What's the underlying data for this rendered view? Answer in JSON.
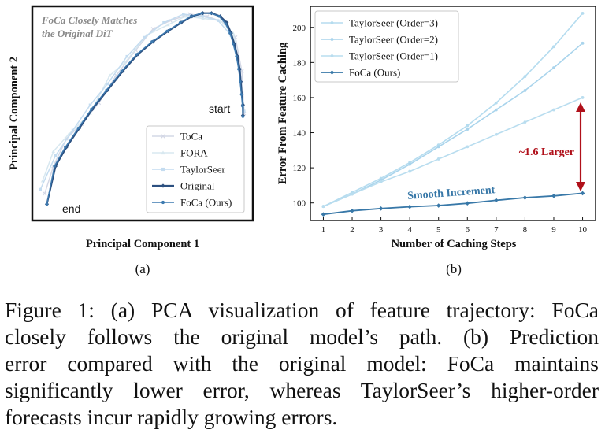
{
  "chart_data": [
    {
      "type": "line",
      "panel_label": "(a)",
      "title": "",
      "xlabel": "Principal Component 1",
      "ylabel": "Principal Component 2",
      "annotation_title_lines": [
        "FoCa Closely Matches",
        "the Original DiT"
      ],
      "start_label": "start",
      "end_label": "end",
      "legend_position": "bottom-right",
      "xlim": [
        0,
        100
      ],
      "ylim": [
        0,
        100
      ],
      "series": [
        {
          "name": "ToCa",
          "color": "#d4d8e6",
          "marker": "x",
          "x": [
            97,
            96,
            93,
            88,
            80,
            72,
            63,
            55,
            47,
            38,
            30,
            22,
            15,
            9,
            5
          ],
          "y": [
            50,
            70,
            86,
            93,
            96,
            97,
            94,
            90,
            80,
            68,
            55,
            45,
            38,
            25,
            12
          ]
        },
        {
          "name": "FORA",
          "color": "#d8e8f0",
          "marker": "triangle",
          "x": [
            97,
            95,
            92,
            86,
            78,
            70,
            62,
            52,
            42,
            35,
            26,
            16,
            9,
            4
          ],
          "y": [
            52,
            72,
            88,
            94,
            95,
            96,
            92,
            87,
            74,
            68,
            50,
            40,
            32,
            18
          ]
        },
        {
          "name": "TaylorSeer",
          "color": "#c4dcf0",
          "marker": "square",
          "x": [
            97,
            95,
            91,
            85,
            78,
            69,
            60,
            51,
            43,
            34,
            26,
            18,
            10,
            3
          ],
          "y": [
            51,
            70,
            87,
            94,
            96,
            97,
            93,
            86,
            77,
            64,
            54,
            42,
            30,
            14
          ]
        },
        {
          "name": "Original",
          "color": "#2c5080",
          "marker": "diamond",
          "x": [
            96.5,
            96.5,
            96,
            95.5,
            95,
            94,
            92.5,
            91,
            89,
            86,
            82,
            78,
            73,
            68,
            62,
            55,
            48,
            41,
            34,
            27,
            21,
            15,
            10,
            6
          ],
          "y": [
            49,
            54,
            59,
            65,
            71,
            77,
            83,
            88,
            93,
            96,
            97.5,
            97.5,
            96,
            93,
            89,
            84,
            78,
            70,
            61,
            52,
            43,
            34,
            25,
            7
          ],
          "line_width": 2.2
        },
        {
          "name": "FoCa (Ours)",
          "color": "#3d7ab0",
          "marker": "dot",
          "x": [
            96.5,
            96.3,
            95.8,
            95.2,
            94.5,
            93.5,
            92,
            90.5,
            88.5,
            85.5,
            81.5,
            77.5,
            72.5,
            67.5,
            61.5,
            54.5,
            47.5,
            40.5,
            33.5,
            26.5,
            20.5,
            14.5,
            9.5,
            6
          ],
          "y": [
            48.5,
            53.5,
            59,
            65,
            71,
            77,
            83,
            88,
            92.5,
            96,
            97.5,
            97.5,
            96,
            93,
            89,
            84,
            78,
            70,
            61,
            52,
            43,
            34,
            25,
            7
          ],
          "line_width": 1.4
        }
      ]
    },
    {
      "type": "line",
      "panel_label": "(b)",
      "title": "",
      "xlabel": "Number of Caching Steps",
      "ylabel": "Error From Feature Caching",
      "x": [
        1,
        2,
        3,
        4,
        5,
        6,
        7,
        8,
        9,
        10
      ],
      "xticks": [
        "1",
        "2",
        "3",
        "4",
        "5",
        "6",
        "7",
        "8",
        "9",
        "10"
      ],
      "xlim": [
        0.55,
        10.45
      ],
      "ylim": [
        90,
        212
      ],
      "yticks": [
        "100",
        "120",
        "140",
        "160",
        "180",
        "200"
      ],
      "legend_position": "top-left",
      "annotations": [
        "~1.6 Larger",
        "Smooth Increment"
      ],
      "series": [
        {
          "name": "TaylorSeer (Order=3)",
          "color": "#b5dcef",
          "values": [
            98,
            106,
            114,
            123,
            133,
            144,
            157,
            172,
            189,
            208
          ]
        },
        {
          "name": "TaylorSeer (Order=2)",
          "color": "#a9d4ec",
          "values": [
            98,
            105,
            113,
            122,
            132,
            142,
            153,
            164,
            177,
            191
          ]
        },
        {
          "name": "TaylorSeer (Order=1)",
          "color": "#b9ddef",
          "values": [
            98,
            105,
            112,
            118,
            125,
            132,
            139,
            146,
            153,
            160
          ]
        },
        {
          "name": "FoCa (Ours)",
          "color": "#3878a8",
          "values": [
            93.5,
            95.5,
            96.8,
            97.8,
            98.5,
            99.8,
            101.5,
            103,
            104,
            105.5
          ]
        }
      ]
    }
  ],
  "caption": {
    "lines": [
      "Figure 1: (a) PCA visualization of feature trajectory: FoCa",
      "closely follows the original model’s path. (b) Prediction",
      "error compared with the original model: FoCa maintains",
      "significantly lower error, whereas TaylorSeer’s higher-order",
      "forecasts incur rapidly growing errors."
    ]
  }
}
